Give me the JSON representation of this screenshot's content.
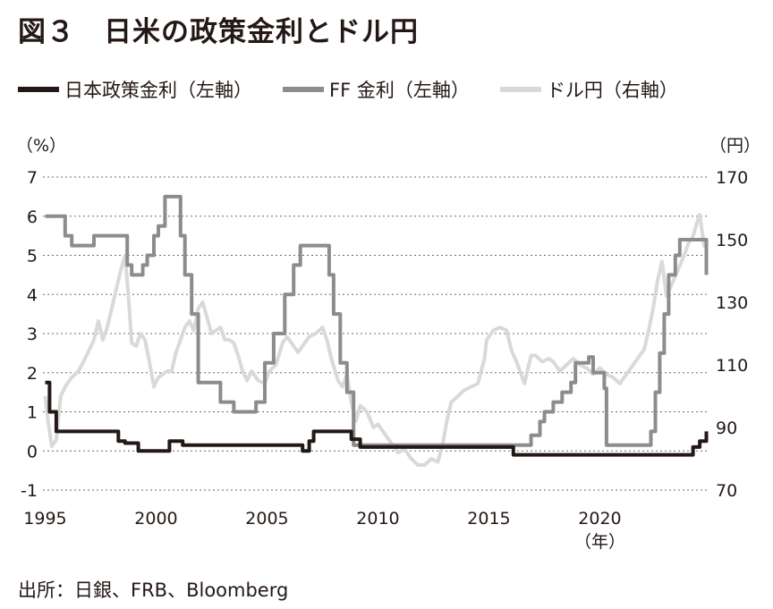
{
  "title": "図３　日米の政策金利とドル円",
  "legend": [
    {
      "label": "日本政策金利（左軸）",
      "color": "#231815"
    },
    {
      "label": "FF 金利（左軸）",
      "color": "#8c8c8c"
    },
    {
      "label": "ドル円（右軸）",
      "color": "#d9d9d9"
    }
  ],
  "source": "出所：日銀、FRB、Bloomberg",
  "chart_data": {
    "type": "line",
    "left_unit": "（%）",
    "right_unit": "（円）",
    "x_unit": "（年）",
    "xlim": [
      1994.9,
      2024.9
    ],
    "ylim_left": [
      -1,
      7
    ],
    "ylim_right": [
      70,
      170
    ],
    "x_ticks": [
      1995,
      2000,
      2005,
      2010,
      2015,
      2020
    ],
    "y_ticks_left": [
      -1,
      0,
      1,
      2,
      3,
      4,
      5,
      6,
      7
    ],
    "y_ticks_right": [
      70,
      90,
      110,
      130,
      150,
      170
    ],
    "grid": "horizontal dotted",
    "series": [
      {
        "name": "日本政策金利（左軸）",
        "axis": "left",
        "color": "#231815",
        "step": true,
        "x": [
          1995.0,
          1995.2,
          1995.5,
          1995.75,
          1998.0,
          1998.3,
          1998.6,
          1999.2,
          2000.6,
          2001.2,
          2006.6,
          2006.9,
          2007.1,
          2007.6,
          2008.4,
          2008.8,
          2009.2,
          2010.0,
          2013.4,
          2016.1,
          2024.2,
          2024.5,
          2024.8
        ],
        "values": [
          1.75,
          1.0,
          0.5,
          0.5,
          0.5,
          0.25,
          0.2,
          0.0,
          0.25,
          0.15,
          0.0,
          0.25,
          0.5,
          0.5,
          0.5,
          0.3,
          0.1,
          0.1,
          0.1,
          -0.1,
          0.1,
          0.25,
          0.5
        ]
      },
      {
        "name": "FF 金利（左軸）",
        "axis": "left",
        "color": "#8c8c8c",
        "step": true,
        "x": [
          1995.0,
          1995.5,
          1995.9,
          1996.2,
          1997.2,
          1998.7,
          1998.9,
          1999.4,
          1999.6,
          1999.9,
          2000.1,
          2000.4,
          2001.0,
          2001.1,
          2001.3,
          2001.6,
          2001.9,
          2002.9,
          2003.5,
          2004.5,
          2004.9,
          2005.3,
          2005.8,
          2006.2,
          2006.5,
          2007.6,
          2007.8,
          2008.0,
          2008.3,
          2008.6,
          2008.9,
          2015.9,
          2016.9,
          2017.3,
          2017.5,
          2017.9,
          2018.3,
          2018.7,
          2018.9,
          2019.5,
          2019.7,
          2020.2,
          2020.3,
          2022.1,
          2022.3,
          2022.5,
          2022.7,
          2022.9,
          2023.1,
          2023.4,
          2023.6,
          2024.6,
          2024.8
        ],
        "values": [
          6.0,
          6.0,
          5.5,
          5.25,
          5.5,
          4.75,
          4.5,
          4.75,
          5.0,
          5.5,
          5.75,
          6.5,
          6.5,
          5.5,
          4.5,
          3.5,
          1.75,
          1.25,
          1.0,
          1.25,
          2.25,
          3.0,
          4.0,
          4.75,
          5.25,
          5.25,
          4.5,
          3.5,
          2.25,
          1.5,
          0.15,
          0.15,
          0.4,
          0.75,
          1.0,
          1.25,
          1.5,
          1.75,
          2.25,
          2.4,
          2.0,
          1.6,
          0.15,
          0.15,
          0.5,
          1.5,
          2.5,
          3.5,
          4.5,
          5.0,
          5.4,
          5.4,
          4.5
        ]
      },
      {
        "name": "ドル円（右軸）",
        "axis": "right",
        "color": "#d9d9d9",
        "x": [
          1995.0,
          1995.15,
          1995.3,
          1995.5,
          1995.7,
          1995.9,
          1996.2,
          1996.5,
          1996.8,
          1997.0,
          1997.2,
          1997.4,
          1997.6,
          1997.8,
          1998.0,
          1998.2,
          1998.4,
          1998.6,
          1998.75,
          1998.9,
          1999.1,
          1999.3,
          1999.5,
          1999.7,
          1999.9,
          2000.1,
          2000.3,
          2000.5,
          2000.7,
          2000.9,
          2001.1,
          2001.3,
          2001.5,
          2001.7,
          2001.9,
          2002.1,
          2002.3,
          2002.5,
          2002.7,
          2002.9,
          2003.1,
          2003.3,
          2003.5,
          2003.7,
          2003.9,
          2004.1,
          2004.3,
          2004.6,
          2004.9,
          2005.1,
          2005.4,
          2005.7,
          2005.9,
          2006.2,
          2006.4,
          2006.7,
          2006.9,
          2007.2,
          2007.5,
          2007.7,
          2007.9,
          2008.2,
          2008.4,
          2008.6,
          2008.8,
          2009.0,
          2009.2,
          2009.5,
          2009.8,
          2010.0,
          2010.3,
          2010.6,
          2010.9,
          2011.2,
          2011.5,
          2011.8,
          2012.1,
          2012.4,
          2012.7,
          2012.9,
          2013.1,
          2013.3,
          2013.6,
          2013.9,
          2014.2,
          2014.5,
          2014.8,
          2014.9,
          2015.2,
          2015.5,
          2015.8,
          2016.0,
          2016.3,
          2016.6,
          2016.9,
          2017.1,
          2017.4,
          2017.7,
          2017.9,
          2018.2,
          2018.5,
          2018.8,
          2019.1,
          2019.4,
          2019.7,
          2020.0,
          2020.3,
          2020.6,
          2020.9,
          2021.2,
          2021.5,
          2021.8,
          2022.0,
          2022.2,
          2022.4,
          2022.6,
          2022.8,
          2023.0,
          2023.2,
          2023.5,
          2023.8,
          2024.0,
          2024.2,
          2024.4,
          2024.5,
          2024.7,
          2024.8
        ],
        "values": [
          100,
          91,
          84,
          86,
          100,
          103,
          106,
          108,
          112,
          115,
          118,
          124,
          118,
          122,
          128,
          134,
          140,
          145,
          132,
          117,
          116,
          120,
          118,
          111,
          103,
          106,
          107,
          108,
          108,
          114,
          118,
          122,
          124,
          121,
          128,
          130,
          125,
          120,
          121,
          122,
          118,
          118,
          117,
          113,
          108,
          105,
          108,
          105,
          104,
          108,
          110,
          117,
          119,
          116,
          114,
          117,
          119,
          120,
          122,
          118,
          112,
          105,
          103,
          107,
          98,
          92,
          97,
          95,
          90,
          91,
          88,
          85,
          82,
          83,
          80,
          78,
          78,
          80,
          79,
          84,
          92,
          98,
          100,
          102,
          103,
          104,
          112,
          118,
          121,
          122,
          121,
          115,
          110,
          104,
          113,
          113,
          111,
          112,
          111,
          108,
          110,
          112,
          110,
          109,
          107,
          109,
          107,
          106,
          104,
          107,
          110,
          113,
          115,
          121,
          128,
          137,
          143,
          132,
          135,
          140,
          145,
          149,
          151,
          156,
          158,
          148,
          150
        ]
      }
    ]
  }
}
